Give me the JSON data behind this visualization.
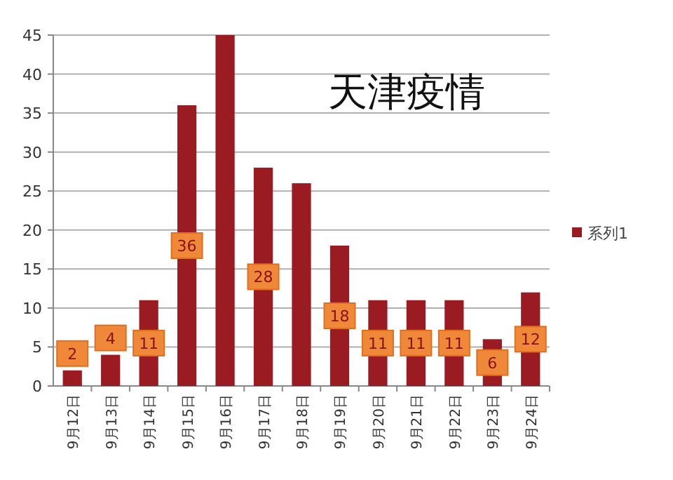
{
  "chart_data": {
    "type": "bar",
    "title": "天津疫情",
    "categories": [
      "9月12日",
      "9月13日",
      "9月14日",
      "9月15日",
      "9月16日",
      "9月17日",
      "9月18日",
      "9月19日",
      "9月20日",
      "9月21日",
      "9月22日",
      "9月23日",
      "9月24日"
    ],
    "series": [
      {
        "name": "系列1",
        "color": "#9b1b22",
        "values": [
          2,
          4,
          11,
          36,
          45,
          28,
          26,
          18,
          11,
          11,
          11,
          6,
          12
        ],
        "value_labels": [
          "2",
          "4",
          "11",
          "36",
          null,
          "28",
          null,
          "18",
          "11",
          "11",
          "11",
          "6",
          "12"
        ]
      }
    ],
    "ylim": [
      0,
      45
    ],
    "yticks": [
      0,
      5,
      10,
      15,
      20,
      25,
      30,
      35,
      40,
      45
    ],
    "grid": "y",
    "legend": "right"
  }
}
